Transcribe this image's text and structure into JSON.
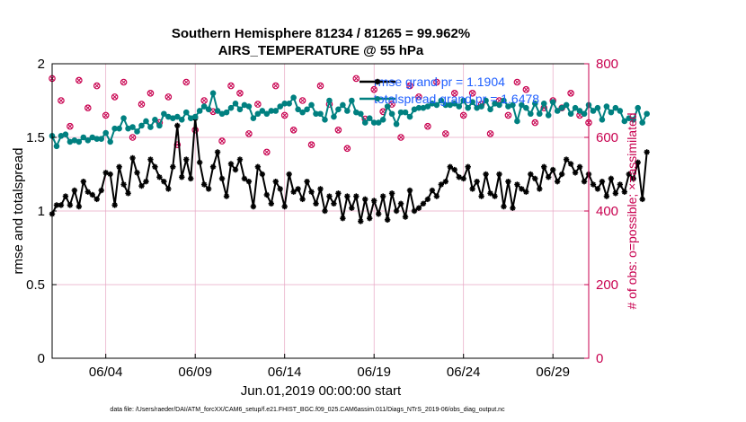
{
  "chart_data": {
    "type": "line",
    "title": "Southern Hemisphere 81234 / 81265 = 99.962%",
    "subtitle": "AIRS_TEMPERATURE @ 55 hPa",
    "xlabel": "Jun.01,2019 00:00:00 start",
    "ylabel": "rmse and totalspread",
    "ylabel_right": "# of obs: o=possible; ×=assimilated",
    "footer": "data file: /Users/raeder/DAI/ATM_forcXX/CAM6_setup/f.e21.FHIST_BGC.f09_025.CAM6assim.011/Diags_NTrS_2019-06/obs_diag_output.nc",
    "x_tick_labels": [
      "06/04",
      "06/09",
      "06/14",
      "06/19",
      "06/24",
      "06/29"
    ],
    "x_tick_days": [
      4,
      9,
      14,
      19,
      24,
      29
    ],
    "xlim_days": [
      1.0,
      31.0
    ],
    "ylim": [
      0,
      2
    ],
    "y_ticks": [
      0,
      0.5,
      1,
      1.5,
      2
    ],
    "y_tick_labels": [
      "0",
      "0.5",
      "1",
      "1.5",
      "2"
    ],
    "ylim_right": [
      0,
      800
    ],
    "y_ticks_right": [
      0,
      200,
      400,
      600,
      800
    ],
    "y_tick_labels_right": [
      "0",
      "200",
      "400",
      "600",
      "800"
    ],
    "grid": true,
    "legend_position": "top-right",
    "colors": {
      "rmse": "#000000",
      "totalspread": "#008080",
      "obs": "#c8004f",
      "legend_text": "#1f5fff",
      "grid": "#e6a7c4"
    },
    "series": [
      {
        "name": "rmse grand pr = 1.1904",
        "color": "#000000",
        "x_start_day": 1.0,
        "x_step_day": 0.25,
        "values": [
          0.98,
          1.04,
          1.04,
          1.1,
          1.04,
          1.14,
          1.03,
          1.2,
          1.13,
          1.11,
          1.08,
          1.14,
          1.26,
          1.25,
          1.04,
          1.3,
          1.18,
          1.12,
          1.36,
          1.26,
          1.17,
          1.2,
          1.35,
          1.3,
          1.23,
          1.2,
          1.15,
          1.3,
          1.58,
          1.23,
          1.35,
          1.22,
          1.63,
          1.33,
          1.18,
          1.15,
          1.3,
          1.4,
          1.22,
          1.1,
          1.32,
          1.28,
          1.35,
          1.22,
          1.2,
          1.03,
          1.3,
          1.25,
          1.11,
          1.05,
          1.2,
          1.15,
          1.03,
          1.25,
          1.13,
          1.15,
          1.08,
          1.2,
          1.13,
          1.05,
          1.15,
          1.0,
          1.1,
          1.05,
          1.12,
          0.95,
          1.1,
          1.02,
          1.1,
          0.93,
          1.08,
          0.95,
          1.07,
          0.98,
          1.1,
          0.94,
          1.12,
          1.0,
          1.05,
          0.96,
          1.14,
          1.0,
          1.02,
          1.05,
          1.08,
          1.14,
          1.1,
          1.18,
          1.2,
          1.3,
          1.28,
          1.23,
          1.22,
          1.3,
          1.15,
          1.2,
          1.1,
          1.25,
          1.12,
          1.1,
          1.25,
          1.03,
          1.2,
          1.02,
          1.18,
          1.15,
          1.13,
          1.25,
          1.22,
          1.15,
          1.3,
          1.23,
          1.28,
          1.2,
          1.25,
          1.35,
          1.32,
          1.26,
          1.3,
          1.2,
          1.25,
          1.18,
          1.15,
          1.2,
          1.1,
          1.22,
          1.12,
          1.18,
          1.13,
          1.25,
          1.22,
          1.33,
          1.08,
          1.4
        ]
      },
      {
        "name": "totalspread grand pr = 1.6478",
        "color": "#008080",
        "x_start_day": 1.0,
        "x_step_day": 0.25,
        "values": [
          1.51,
          1.44,
          1.51,
          1.52,
          1.47,
          1.48,
          1.47,
          1.5,
          1.48,
          1.5,
          1.49,
          1.49,
          1.53,
          1.47,
          1.56,
          1.56,
          1.63,
          1.56,
          1.57,
          1.54,
          1.58,
          1.61,
          1.57,
          1.62,
          1.58,
          1.66,
          1.64,
          1.63,
          1.64,
          1.62,
          1.67,
          1.63,
          1.64,
          1.68,
          1.71,
          1.69,
          1.8,
          1.68,
          1.66,
          1.67,
          1.7,
          1.73,
          1.69,
          1.72,
          1.71,
          1.63,
          1.66,
          1.68,
          1.66,
          1.68,
          1.68,
          1.71,
          1.73,
          1.73,
          1.77,
          1.69,
          1.67,
          1.69,
          1.72,
          1.66,
          1.66,
          1.62,
          1.75,
          1.64,
          1.69,
          1.72,
          1.68,
          1.75,
          1.67,
          1.66,
          1.6,
          1.63,
          1.6,
          1.6,
          1.62,
          1.71,
          1.66,
          1.59,
          1.67,
          1.67,
          1.64,
          1.69,
          1.7,
          1.7,
          1.71,
          1.73,
          1.72,
          1.75,
          1.72,
          1.72,
          1.73,
          1.71,
          1.75,
          1.7,
          1.74,
          1.7,
          1.71,
          1.75,
          1.69,
          1.73,
          1.72,
          1.75,
          1.71,
          1.72,
          1.61,
          1.72,
          1.7,
          1.66,
          1.73,
          1.66,
          1.73,
          1.65,
          1.74,
          1.68,
          1.7,
          1.72,
          1.66,
          1.7,
          1.68,
          1.66,
          1.72,
          1.68,
          1.7,
          1.62,
          1.71,
          1.67,
          1.7,
          1.68,
          1.61,
          1.63,
          1.62,
          1.7,
          1.6,
          1.66
        ]
      },
      {
        "name": "obs possible",
        "axis": "right",
        "color": "#c8004f",
        "x_start_day": 1.0,
        "x_step_day": 0.5,
        "values": [
          760,
          700,
          630,
          755,
          680,
          740,
          660,
          710,
          750,
          600,
          690,
          720,
          640,
          710,
          580,
          750,
          620,
          700,
          670,
          590,
          740,
          720,
          610,
          690,
          560,
          740,
          660,
          620,
          700,
          580,
          740,
          690,
          620,
          570,
          760,
          650,
          730,
          670,
          690,
          600,
          740,
          710,
          630,
          750,
          610,
          720,
          660,
          720,
          690,
          610,
          700,
          660,
          750,
          730,
          640,
          680,
          700,
          680,
          720,
          660,
          640
        ]
      },
      {
        "name": "obs assimilated",
        "axis": "right",
        "color": "#c8004f",
        "x_start_day": 1.0,
        "x_step_day": 0.5,
        "values": [
          760,
          700,
          630,
          755,
          680,
          740,
          660,
          710,
          750,
          600,
          690,
          720,
          640,
          710,
          580,
          750,
          620,
          700,
          670,
          590,
          740,
          720,
          610,
          690,
          560,
          740,
          660,
          620,
          700,
          580,
          740,
          690,
          620,
          570,
          760,
          650,
          730,
          670,
          690,
          600,
          740,
          710,
          630,
          750,
          610,
          720,
          660,
          720,
          690,
          610,
          700,
          660,
          750,
          730,
          640,
          680,
          700,
          680,
          720,
          660,
          640
        ]
      }
    ]
  }
}
